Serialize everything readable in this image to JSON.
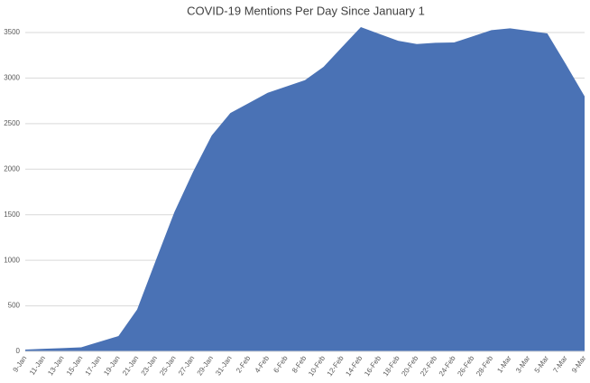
{
  "chart_data": {
    "type": "area",
    "title": "COVID-19 Mentions Per Day Since January 1",
    "categories": [
      "9-Jan",
      "11-Jan",
      "13-Jan",
      "15-Jan",
      "17-Jan",
      "19-Jan",
      "21-Jan",
      "23-Jan",
      "25-Jan",
      "27-Jan",
      "29-Jan",
      "31-Jan",
      "2-Feb",
      "4-Feb",
      "6-Feb",
      "8-Feb",
      "10-Feb",
      "12-Feb",
      "14-Feb",
      "16-Feb",
      "18-Feb",
      "20-Feb",
      "22-Feb",
      "24-Feb",
      "26-Feb",
      "28-Feb",
      "1-Mar",
      "3-Mar",
      "5-Mar",
      "7-Mar",
      "9-Mar"
    ],
    "values": [
      20,
      28,
      36,
      45,
      107,
      168,
      460,
      998,
      1530,
      1970,
      2370,
      2616,
      2727,
      2838,
      2907,
      2977,
      3123,
      3342,
      3560,
      3484,
      3409,
      3374,
      3387,
      3391,
      3458,
      3526,
      3546,
      3518,
      3490,
      3150,
      2800
    ],
    "color": "#4a72b5",
    "ylim": [
      0,
      3500
    ],
    "yticks": [
      0,
      500,
      1000,
      1500,
      2000,
      2500,
      3000,
      3500
    ],
    "grid": true
  }
}
